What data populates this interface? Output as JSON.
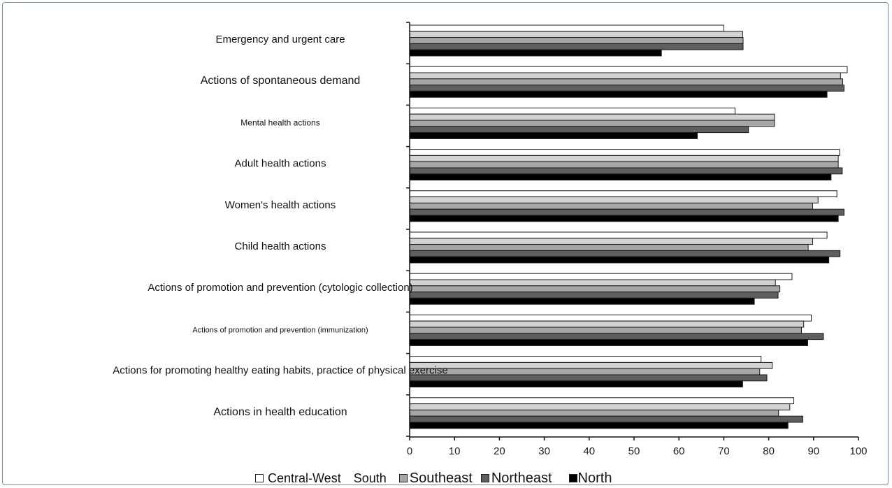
{
  "chart_data": {
    "type": "bar",
    "orientation": "horizontal",
    "categories": [
      "Emergency and urgent care",
      "Actions of spontaneous demand",
      "Mental health actions",
      "Adult health actions",
      "Women's health actions",
      "Child health actions",
      "Actions of promotion and prevention (cytologic collection)",
      "Actions of promotion and prevention (immunization)",
      "Actions for promoting healthy eating habits, practice of physical exercise",
      "Actions in health education"
    ],
    "series": [
      {
        "name": "Central-West",
        "color": "#ffffff",
        "values": [
          70,
          97.5,
          72.5,
          95.8,
          95.2,
          93.0,
          85.2,
          89.5,
          78.3,
          85.6
        ]
      },
      {
        "name": "South",
        "color": "#d2d2d2",
        "values": [
          74.2,
          96.0,
          81.3,
          95.5,
          91.0,
          89.8,
          81.5,
          87.8,
          80.8,
          84.7
        ]
      },
      {
        "name": "Southeast",
        "color": "#a6a6a6",
        "values": [
          74.3,
          96.5,
          81.3,
          95.5,
          89.8,
          88.8,
          82.5,
          87.3,
          78.0,
          82.2
        ]
      },
      {
        "name": "Northeast",
        "color": "#5e5e5e",
        "values": [
          74.3,
          96.8,
          75.5,
          96.4,
          96.8,
          95.9,
          82.1,
          92.2,
          79.6,
          87.6
        ]
      },
      {
        "name": "North",
        "color": "#000000",
        "values": [
          56.1,
          93.0,
          64.1,
          93.9,
          95.5,
          93.4,
          76.8,
          88.7,
          74.2,
          84.3
        ]
      }
    ],
    "xlim": [
      0,
      100
    ],
    "xticks": [
      "0",
      "10",
      "20",
      "30",
      "40",
      "50",
      "60",
      "70",
      "80",
      "90",
      "100"
    ],
    "xlabel": "",
    "ylabel": "",
    "title": "",
    "legend_position": "bottom",
    "grid": false
  },
  "legend": {
    "items": [
      {
        "label": "Central-West",
        "color": "#ffffff",
        "swatch": true
      },
      {
        "label": "South",
        "color": "",
        "swatch": false
      },
      {
        "label": "Southeast",
        "color": "#a6a6a6",
        "swatch": true
      },
      {
        "label": "Northeast",
        "color": "#5e5e5e",
        "swatch": true
      },
      {
        "label": "North",
        "color": "#000000",
        "swatch": true
      }
    ]
  }
}
